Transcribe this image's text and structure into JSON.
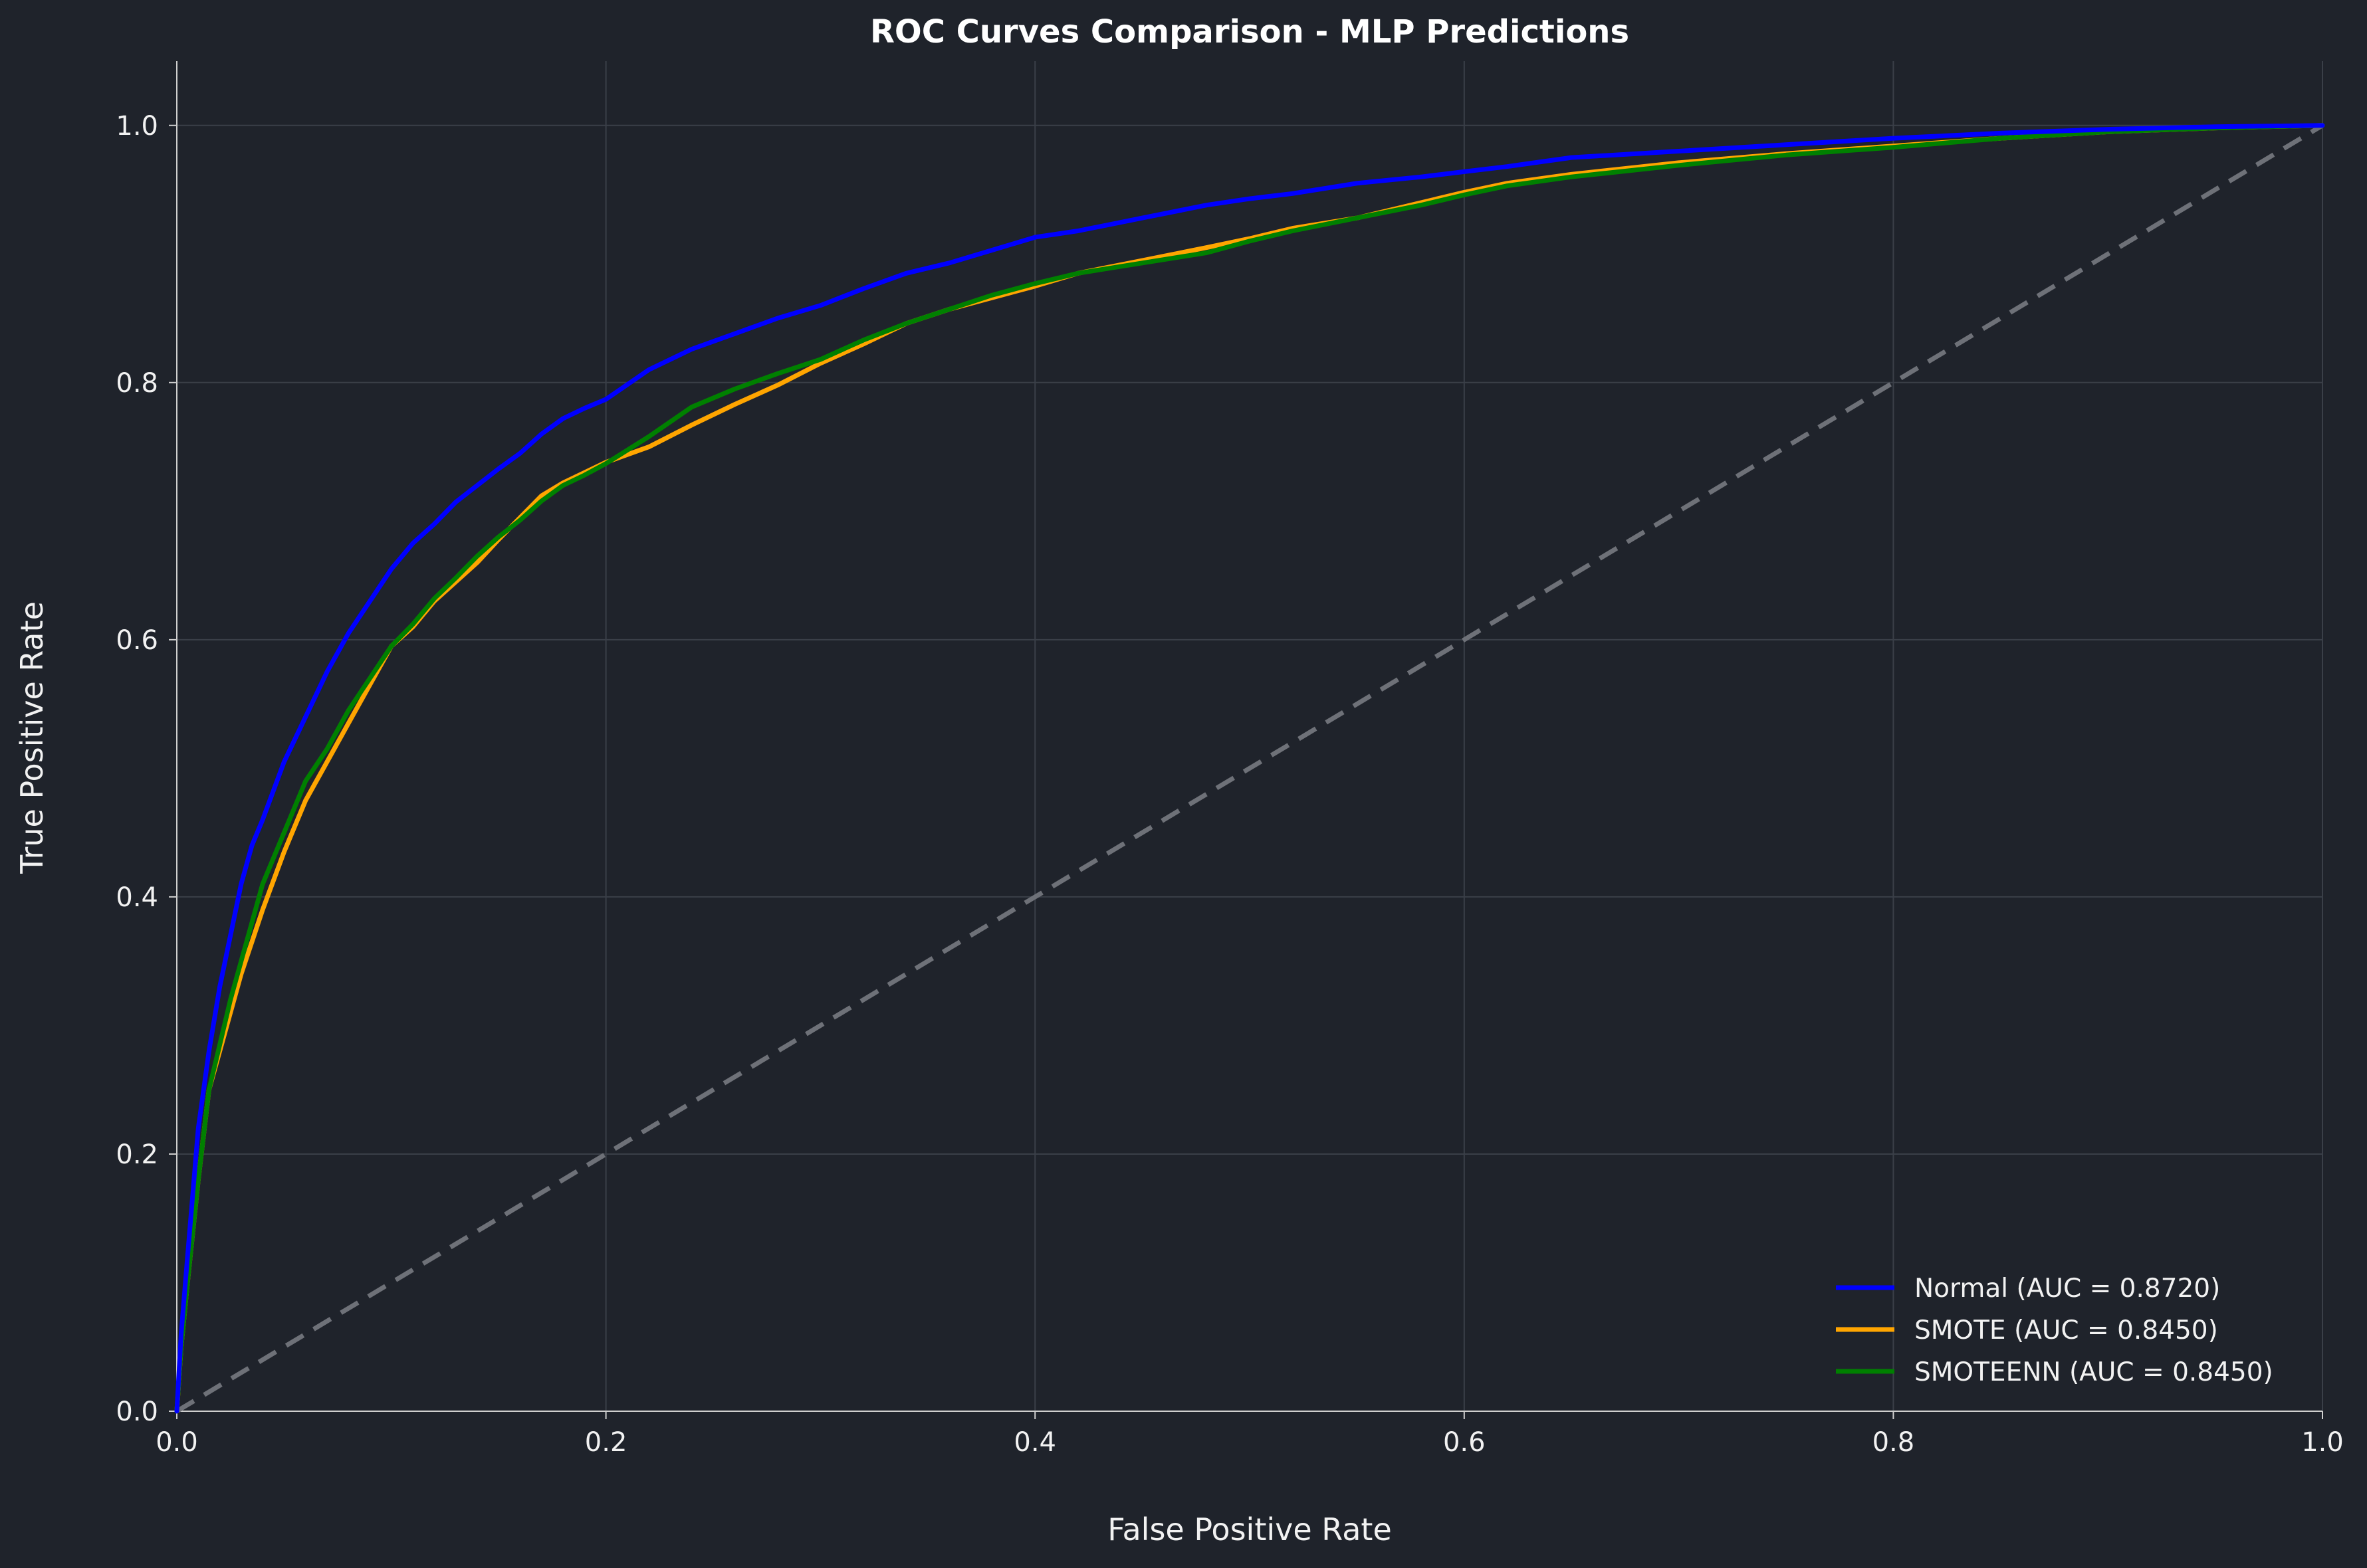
{
  "chart_data": {
    "type": "line",
    "title": "ROC Curves Comparison - MLP Predictions",
    "xlabel": "False Positive Rate",
    "ylabel": "True Positive Rate",
    "xlim": [
      0.0,
      1.0
    ],
    "ylim": [
      0.0,
      1.05
    ],
    "xticks": [
      "0.0",
      "0.2",
      "0.4",
      "0.6",
      "0.8",
      "1.0"
    ],
    "yticks": [
      "0.0",
      "0.2",
      "0.4",
      "0.6",
      "0.8",
      "1.0"
    ],
    "grid": true,
    "legend_position": "lower-right",
    "colors": {
      "background": "#1f232b",
      "grid": "#3a3f48",
      "diagonal": "#6e7178"
    },
    "series": [
      {
        "name": "Normal (AUC = 0.8720)",
        "color": "#0000ff",
        "x": [
          0,
          0.002,
          0.005,
          0.01,
          0.015,
          0.02,
          0.025,
          0.03,
          0.035,
          0.04,
          0.05,
          0.06,
          0.07,
          0.08,
          0.09,
          0.1,
          0.11,
          0.12,
          0.13,
          0.14,
          0.15,
          0.16,
          0.17,
          0.18,
          0.19,
          0.2,
          0.22,
          0.24,
          0.26,
          0.28,
          0.3,
          0.32,
          0.34,
          0.36,
          0.38,
          0.4,
          0.42,
          0.45,
          0.48,
          0.5,
          0.52,
          0.55,
          0.58,
          0.6,
          0.62,
          0.65,
          0.7,
          0.75,
          0.8,
          0.85,
          0.9,
          0.95,
          1.0
        ],
        "y": [
          0,
          0.06,
          0.12,
          0.22,
          0.28,
          0.33,
          0.37,
          0.41,
          0.44,
          0.46,
          0.505,
          0.54,
          0.575,
          0.605,
          0.63,
          0.655,
          0.675,
          0.69,
          0.707,
          0.72,
          0.733,
          0.745,
          0.76,
          0.772,
          0.78,
          0.787,
          0.81,
          0.826,
          0.838,
          0.85,
          0.86,
          0.873,
          0.885,
          0.893,
          0.903,
          0.913,
          0.918,
          0.928,
          0.938,
          0.943,
          0.947,
          0.955,
          0.96,
          0.964,
          0.968,
          0.975,
          0.98,
          0.985,
          0.99,
          0.994,
          0.997,
          0.999,
          1.0
        ]
      },
      {
        "name": "SMOTE (AUC = 0.8450)",
        "color": "#ffa500",
        "x": [
          0,
          0.002,
          0.005,
          0.01,
          0.015,
          0.02,
          0.025,
          0.03,
          0.035,
          0.04,
          0.05,
          0.06,
          0.07,
          0.08,
          0.09,
          0.1,
          0.11,
          0.12,
          0.13,
          0.14,
          0.15,
          0.16,
          0.17,
          0.18,
          0.19,
          0.2,
          0.22,
          0.24,
          0.26,
          0.28,
          0.3,
          0.32,
          0.34,
          0.36,
          0.38,
          0.4,
          0.42,
          0.45,
          0.48,
          0.5,
          0.52,
          0.55,
          0.58,
          0.6,
          0.62,
          0.65,
          0.7,
          0.75,
          0.8,
          0.85,
          0.9,
          0.95,
          1.0
        ],
        "y": [
          0,
          0.05,
          0.1,
          0.18,
          0.25,
          0.28,
          0.31,
          0.34,
          0.365,
          0.39,
          0.435,
          0.475,
          0.505,
          0.535,
          0.565,
          0.595,
          0.61,
          0.63,
          0.645,
          0.66,
          0.678,
          0.695,
          0.712,
          0.722,
          0.73,
          0.738,
          0.75,
          0.767,
          0.783,
          0.798,
          0.815,
          0.83,
          0.846,
          0.857,
          0.866,
          0.875,
          0.885,
          0.895,
          0.905,
          0.912,
          0.92,
          0.928,
          0.94,
          0.948,
          0.955,
          0.962,
          0.971,
          0.978,
          0.984,
          0.99,
          0.995,
          0.998,
          1.0
        ]
      },
      {
        "name": "SMOTEENN (AUC = 0.8450)",
        "color": "#008000",
        "x": [
          0,
          0.002,
          0.005,
          0.01,
          0.015,
          0.02,
          0.025,
          0.03,
          0.035,
          0.04,
          0.05,
          0.06,
          0.07,
          0.08,
          0.09,
          0.1,
          0.11,
          0.12,
          0.13,
          0.14,
          0.15,
          0.16,
          0.17,
          0.18,
          0.19,
          0.2,
          0.22,
          0.24,
          0.26,
          0.28,
          0.3,
          0.32,
          0.34,
          0.36,
          0.38,
          0.4,
          0.42,
          0.45,
          0.48,
          0.5,
          0.52,
          0.55,
          0.58,
          0.6,
          0.62,
          0.65,
          0.7,
          0.75,
          0.8,
          0.85,
          0.9,
          0.95,
          1.0
        ],
        "y": [
          0,
          0.05,
          0.1,
          0.18,
          0.25,
          0.285,
          0.32,
          0.35,
          0.38,
          0.41,
          0.45,
          0.49,
          0.515,
          0.545,
          0.57,
          0.595,
          0.612,
          0.632,
          0.648,
          0.665,
          0.68,
          0.693,
          0.708,
          0.72,
          0.728,
          0.737,
          0.758,
          0.781,
          0.795,
          0.807,
          0.818,
          0.833,
          0.846,
          0.857,
          0.868,
          0.877,
          0.885,
          0.893,
          0.901,
          0.91,
          0.918,
          0.928,
          0.938,
          0.946,
          0.953,
          0.96,
          0.969,
          0.977,
          0.983,
          0.99,
          0.995,
          0.998,
          1.0
        ]
      }
    ],
    "reference_line": {
      "x": [
        0,
        1
      ],
      "y": [
        0,
        1
      ],
      "style": "dashed"
    }
  }
}
